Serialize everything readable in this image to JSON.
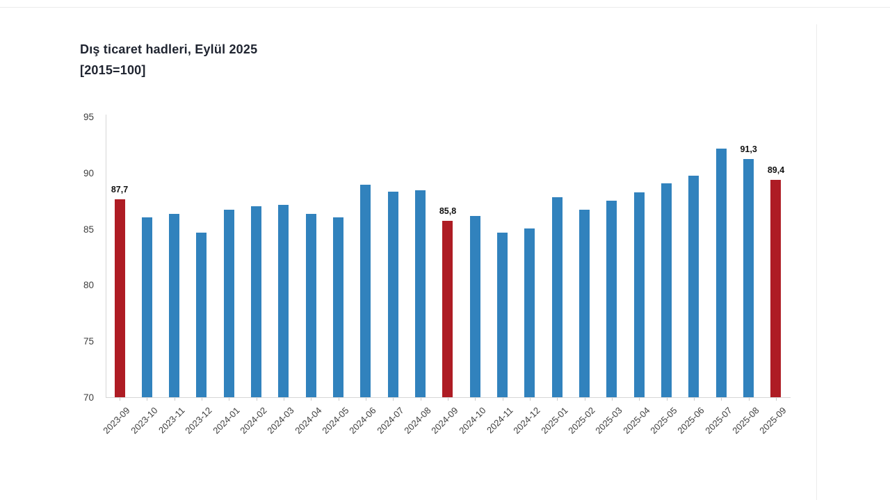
{
  "title": {
    "line1": "Dış ticaret hadleri, Eylül 2025",
    "line2": "[2015=100]"
  },
  "colors": {
    "bar_default": "#3182BD",
    "bar_highlight": "#AE1C24",
    "title_text": "#1F2430",
    "axis_text": "#3D3D3D",
    "axis_line": "#D6D6D6",
    "tick_mark": "#C9C9C9",
    "data_label_text": "#111111",
    "background": "#FFFFFF"
  },
  "chart_data": {
    "type": "bar",
    "title": "Dış ticaret hadleri, Eylül 2025 [2015=100]",
    "subtitle": "[2015=100]",
    "categories": [
      "2023-09",
      "2023-10",
      "2023-11",
      "2023-12",
      "2024-01",
      "2024-02",
      "2024-03",
      "2024-04",
      "2024-05",
      "2024-06",
      "2024-07",
      "2024-08",
      "2024-09",
      "2024-10",
      "2024-11",
      "2024-12",
      "2025-01",
      "2025-02",
      "2025-03",
      "2025-04",
      "2025-05",
      "2025-06",
      "2025-07",
      "2025-08",
      "2025-09"
    ],
    "values": [
      87.7,
      86.1,
      86.4,
      84.7,
      86.8,
      87.1,
      87.2,
      86.4,
      86.1,
      89.0,
      88.4,
      88.5,
      85.8,
      86.2,
      84.7,
      85.1,
      87.9,
      86.8,
      87.6,
      88.3,
      89.1,
      89.8,
      92.2,
      91.3,
      89.4
    ],
    "highlighted_indices": [
      0,
      12,
      24
    ],
    "data_labels": {
      "0": "87,7",
      "12": "85,8",
      "23": "91,3",
      "24": "89,4"
    },
    "ylim": [
      70,
      95
    ],
    "yticks": [
      70,
      75,
      80,
      85,
      90,
      95
    ],
    "grid": false,
    "legend": "none",
    "xlabel": "",
    "ylabel": ""
  }
}
